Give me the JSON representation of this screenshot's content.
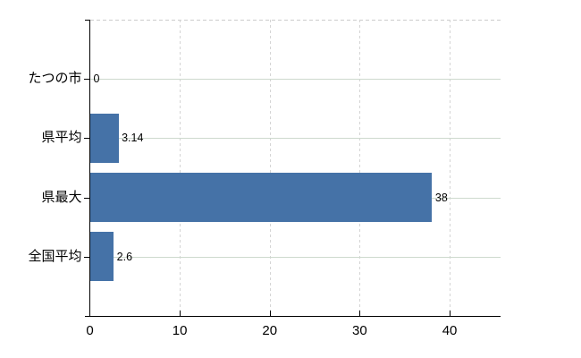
{
  "chart_data": {
    "type": "bar",
    "orientation": "horizontal",
    "title": "",
    "xlabel": "",
    "ylabel": "",
    "categories": [
      "たつの市",
      "県平均",
      "県最大",
      "全国平均"
    ],
    "values": [
      0,
      3.14,
      38,
      2.6
    ],
    "value_labels": [
      "0",
      "3.14",
      "38",
      "2.6"
    ],
    "x_ticks": [
      0,
      10,
      20,
      30,
      40
    ],
    "x_tick_labels": [
      "0",
      "10",
      "20",
      "30",
      "40"
    ],
    "xlim": [
      0,
      45.66
    ],
    "grid": true,
    "legend": false,
    "colors": {
      "bar": "#4572a7",
      "horizontal_gridline": "#cdd9cd",
      "vertical_gridline": "#d4d4d4",
      "top_border": "#cccccc",
      "axis": "#000000",
      "text": "#000000",
      "background": "#ffffff"
    }
  }
}
